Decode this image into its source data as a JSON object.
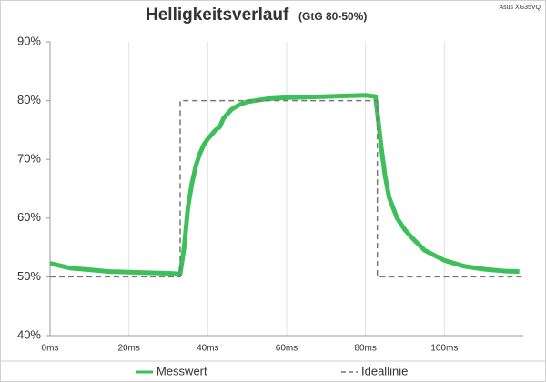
{
  "chart_data": {
    "type": "line",
    "title": "Helligkeitsverlauf",
    "subtitle": "(GtG 80-50%)",
    "annotation": "Asus XG35VQ",
    "xlim": [
      0,
      120
    ],
    "xticks": [
      {
        "value": 0,
        "label": "0ms"
      },
      {
        "value": 20,
        "label": "20ms"
      },
      {
        "value": 40,
        "label": "40ms"
      },
      {
        "value": 60,
        "label": "60ms"
      },
      {
        "value": 80,
        "label": "80ms"
      },
      {
        "value": 100,
        "label": "100ms"
      }
    ],
    "ylim": [
      40,
      90
    ],
    "yticks": [
      {
        "value": 40,
        "label": "40%"
      },
      {
        "value": 50,
        "label": "50%"
      },
      {
        "value": 60,
        "label": "60%"
      },
      {
        "value": 70,
        "label": "70%"
      },
      {
        "value": 80,
        "label": "80%"
      },
      {
        "value": 90,
        "label": "90%"
      }
    ],
    "grid": true,
    "legend": "bottom",
    "series": [
      {
        "name": "Messwert",
        "color": "#3dbf5a",
        "style": "solid",
        "x": [
          0,
          5,
          10,
          15,
          20,
          25,
          30,
          33,
          34,
          35,
          36,
          37,
          38,
          39,
          40,
          42,
          43,
          44,
          46,
          48,
          50,
          55,
          60,
          65,
          70,
          75,
          80,
          82.5,
          83,
          84,
          85,
          86,
          88,
          90,
          92,
          95,
          100,
          105,
          110,
          115,
          119
        ],
        "values": [
          52.3,
          51.5,
          51.2,
          50.9,
          50.8,
          50.7,
          50.6,
          50.5,
          55,
          62,
          66,
          69,
          71,
          72.5,
          73.5,
          75,
          75.5,
          77,
          78.5,
          79.3,
          79.8,
          80.3,
          80.5,
          80.6,
          80.7,
          80.8,
          80.9,
          80.7,
          78,
          72,
          67,
          63.5,
          60,
          58,
          56.5,
          54.5,
          52.8,
          51.8,
          51.3,
          51,
          50.9
        ]
      },
      {
        "name": "Ideallinie",
        "color": "#777777",
        "style": "dashed",
        "x": [
          0,
          33,
          33,
          83,
          83,
          120
        ],
        "values": [
          50,
          50,
          80,
          80,
          50,
          50
        ]
      }
    ]
  }
}
